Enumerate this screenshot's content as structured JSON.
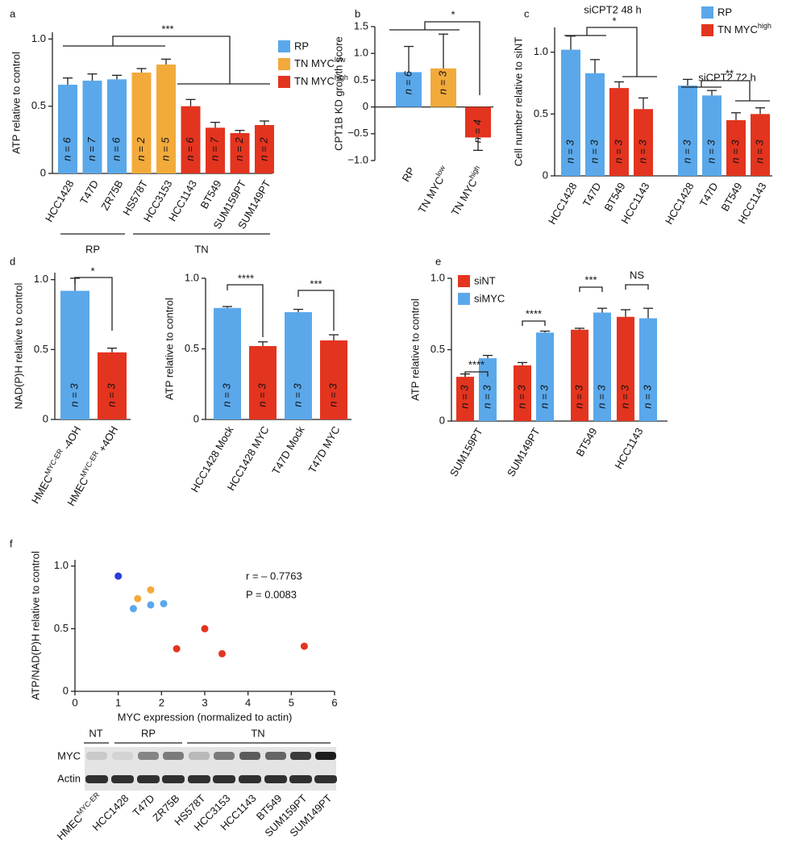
{
  "chart_data": [
    {
      "type": "bar",
      "panel": "a",
      "ylabel": "ATP relative to control",
      "categories": [
        "HCC1428",
        "T47D",
        "ZR75B",
        "HS578T",
        "HCC3153",
        "HCC1143",
        "BT549",
        "SUM159PT",
        "SUM149PT"
      ],
      "values": [
        0.66,
        0.69,
        0.7,
        0.75,
        0.81,
        0.5,
        0.34,
        0.3,
        0.36
      ],
      "errors": [
        0.05,
        0.05,
        0.03,
        0.03,
        0.04,
        0.05,
        0.04,
        0.02,
        0.03
      ],
      "colors": [
        "#5aa8ea",
        "#5aa8ea",
        "#5aa8ea",
        "#f2aa3b",
        "#f2aa3b",
        "#e3341f",
        "#e3341f",
        "#e3341f",
        "#e3341f"
      ],
      "n_labels": [
        "n = 6",
        "n = 7",
        "n = 6",
        "n = 2",
        "n = 5",
        "n = 6",
        "n = 7",
        "n = 2",
        "n = 2"
      ],
      "legend": [
        {
          "name": "RP",
          "color": "#5aa8ea"
        },
        {
          "name": {
            "text": "TN MYC",
            "sup": "low"
          },
          "color": "#f2aa3b"
        },
        {
          "name": {
            "text": "TN MYC",
            "sup": "high"
          },
          "color": "#e3341f"
        }
      ],
      "group_labels": [
        "RP",
        "TN"
      ],
      "significance": [
        "***"
      ],
      "ylim": [
        0,
        1.05
      ],
      "yticks": [
        0,
        0.5,
        {
          "value": 1,
          "label": "1.0"
        }
      ]
    },
    {
      "type": "bar",
      "panel": "b",
      "ylabel": "CPT1B KD growth score",
      "categories": [
        "RP",
        {
          "text": "TN MYC",
          "sup": "low"
        },
        {
          "text": "TN MYC",
          "sup": "high"
        }
      ],
      "values": [
        0.65,
        0.72,
        -0.57
      ],
      "errors": [
        0.48,
        0.64,
        0.24
      ],
      "colors": [
        "#5aa8ea",
        "#f2aa3b",
        "#e3341f"
      ],
      "n_labels": [
        "n = 6",
        "n = 3",
        "n = 4"
      ],
      "significance": [
        "*"
      ],
      "ylim": [
        -1,
        1.5
      ],
      "yticks": [
        {
          "value": -1,
          "label": "−1.0"
        },
        {
          "value": -0.5,
          "label": "−0.5"
        },
        0,
        0.5,
        {
          "value": 1,
          "label": "1.0"
        },
        1.5
      ]
    },
    {
      "type": "bar",
      "panel": "c",
      "ylabel": "Cell number relative to siNT",
      "categories": [
        "HCC1428",
        "T47D",
        "BT549",
        "HCC1143",
        "HCC1428",
        "T47D",
        "BT549",
        "HCC1143"
      ],
      "values": [
        1.02,
        0.83,
        0.71,
        0.54,
        0.73,
        0.65,
        0.45,
        0.5
      ],
      "errors": [
        0.11,
        0.11,
        0.05,
        0.09,
        0.05,
        0.04,
        0.06,
        0.05
      ],
      "colors": [
        "#5aa8ea",
        "#5aa8ea",
        "#e3341f",
        "#e3341f",
        "#5aa8ea",
        "#5aa8ea",
        "#e3341f",
        "#e3341f"
      ],
      "n_labels": [
        "n = 3",
        "n = 3",
        "n = 3",
        "n = 3",
        "n = 3",
        "n = 3",
        "n = 3",
        "n = 3"
      ],
      "group_titles": [
        "siCPT2 48 h",
        "siCPT2 72 h"
      ],
      "legend": [
        {
          "name": "RP",
          "color": "#5aa8ea"
        },
        {
          "name": {
            "text": "TN MYC",
            "sup": "high"
          },
          "color": "#e3341f"
        }
      ],
      "significance": [
        "*",
        "**"
      ],
      "ylim": [
        0,
        1.2
      ],
      "yticks": [
        0,
        0.5,
        {
          "value": 1,
          "label": "1.0"
        }
      ]
    },
    {
      "type": "bar",
      "panel": "d",
      "ylabel": "NAD(P)H relative to control",
      "categories": [
        {
          "text": "HMEC",
          "sup": "MYC-ER",
          "tail": " -4OH"
        },
        {
          "text": "HMEC",
          "sup": "MYC-ER",
          "tail": " +4OH"
        }
      ],
      "values": [
        0.92,
        0.48
      ],
      "errors": [
        0.09,
        0.03
      ],
      "colors": [
        "#5aa8ea",
        "#e3341f"
      ],
      "n_labels": [
        "n = 3",
        "n = 3"
      ],
      "significance": [
        "*"
      ],
      "ylim": [
        0,
        1.05
      ],
      "yticks": [
        0,
        0.5,
        {
          "value": 1,
          "label": "1.0"
        }
      ]
    },
    {
      "type": "bar",
      "ylabel": "ATP relative to control",
      "categories": [
        "HCC1428 Mock",
        "HCC1428 MYC",
        "T47D Mock",
        "T47D MYC"
      ],
      "values": [
        0.79,
        0.52,
        0.76,
        0.56
      ],
      "errors": [
        0.01,
        0.03,
        0.02,
        0.04
      ],
      "colors": [
        "#5aa8ea",
        "#e3341f",
        "#5aa8ea",
        "#e3341f"
      ],
      "n_labels": [
        "n = 3",
        "n = 3",
        "n = 3",
        "n = 3"
      ],
      "significance": [
        "****",
        "***"
      ],
      "ylim": [
        0,
        1
      ],
      "yticks": [
        0,
        0.5,
        {
          "value": 1,
          "label": "1.0"
        }
      ]
    },
    {
      "type": "grouped_bar",
      "panel": "e",
      "ylabel": "ATP relative to control",
      "categories": [
        "SUM159PT",
        "SUM149PT",
        "BT549",
        "HCC1143"
      ],
      "series": [
        {
          "name": "siNT",
          "color": "#e3341f",
          "values": [
            0.31,
            0.39,
            0.64,
            0.73
          ],
          "errors": [
            0.02,
            0.02,
            0.01,
            0.05
          ],
          "n_labels": [
            "n = 3",
            "n = 3",
            "n = 3",
            "n = 3"
          ]
        },
        {
          "name": "siMYC",
          "color": "#5aa8ea",
          "values": [
            0.44,
            0.62,
            0.76,
            0.72
          ],
          "errors": [
            0.02,
            0.01,
            0.03,
            0.07
          ],
          "n_labels": [
            "n = 3",
            "n = 3",
            "n = 3",
            "n = 3"
          ]
        }
      ],
      "significance": [
        "****",
        "****",
        "***",
        "NS"
      ],
      "ylim": [
        0,
        1
      ],
      "yticks": [
        0,
        0.5,
        {
          "value": 1,
          "label": "1.0"
        }
      ]
    },
    {
      "type": "scatter",
      "panel": "f",
      "xlabel": "MYC expression (normalized to actin)",
      "ylabel": "ATP/NAD(P)H relative to control",
      "x": [
        1.0,
        1.35,
        1.45,
        1.75,
        1.75,
        2.05,
        2.35,
        3.0,
        3.4,
        5.3
      ],
      "values": [
        0.92,
        0.66,
        0.74,
        0.81,
        0.69,
        0.7,
        0.34,
        0.5,
        0.3,
        0.36
      ],
      "colors": [
        "#2b3bd9",
        "#5aa8ea",
        "#f2aa3b",
        "#f2aa3b",
        "#5aa8ea",
        "#5aa8ea",
        "#e3341f",
        "#e3341f",
        "#e3341f",
        "#e3341f"
      ],
      "annotations": [
        "r = – 0.7763",
        "P = 0.0083"
      ],
      "xlim": [
        0,
        6
      ],
      "xticks": [
        0,
        1,
        2,
        3,
        4,
        5,
        6
      ],
      "ylim": [
        0,
        1.05
      ],
      "yticks": [
        0,
        0.5,
        {
          "value": 1,
          "label": "1.0"
        }
      ]
    }
  ],
  "blot": {
    "headers": [
      "NT",
      "RP",
      "TN"
    ],
    "rows": [
      "MYC",
      "Actin"
    ],
    "lanes": [
      {
        "text": "HMEC",
        "sup": "MYC-ER"
      },
      "HCC1428",
      "T47D",
      "ZR75B",
      "HS578T",
      "HCC3153",
      "HCC1143",
      "BT549",
      "SUM159PT",
      "SUM149PT"
    ]
  }
}
